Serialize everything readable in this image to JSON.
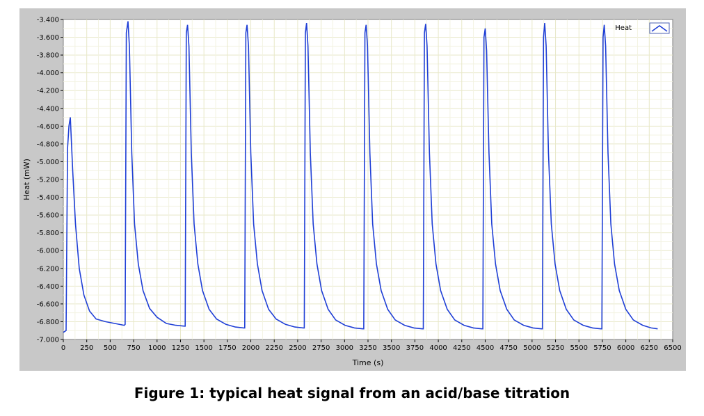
{
  "caption": "Figure 1: typical heat signal from an acid/base titration",
  "colors": {
    "line": "#1f3fd6",
    "panel": "#c8c8c8",
    "plot_bg": "#ffffff",
    "grid": "#e8e8c8"
  },
  "chart_data": {
    "type": "line",
    "xlabel": "Time (s)",
    "ylabel": "Heat (mW)",
    "xlim": [
      0,
      6500
    ],
    "ylim": [
      -7.0,
      -3.4
    ],
    "x_ticks": [
      0,
      250,
      500,
      750,
      1000,
      1250,
      1500,
      1750,
      2000,
      2250,
      2500,
      2750,
      3000,
      3250,
      3500,
      3750,
      4000,
      4250,
      4500,
      4750,
      5000,
      5250,
      5500,
      5750,
      6000,
      6250,
      6500
    ],
    "y_tick_labels": [
      "-3.400",
      "-3.600",
      "-3.800",
      "-4.000",
      "-4.200",
      "-4.400",
      "-4.600",
      "-4.800",
      "-5.000",
      "-5.200",
      "-5.400",
      "-5.600",
      "-5.800",
      "-6.000",
      "-6.200",
      "-6.400",
      "-6.600",
      "-6.800",
      "-7.000"
    ],
    "grid": true,
    "legend_position": "top-right",
    "series": [
      {
        "name": "Heat",
        "color": "#1f3fd6",
        "points": [
          [
            0,
            -6.92
          ],
          [
            30,
            -6.9
          ],
          [
            45,
            -4.85
          ],
          [
            60,
            -4.6
          ],
          [
            75,
            -4.5
          ],
          [
            100,
            -5.1
          ],
          [
            130,
            -5.7
          ],
          [
            170,
            -6.2
          ],
          [
            220,
            -6.5
          ],
          [
            280,
            -6.68
          ],
          [
            350,
            -6.77
          ],
          [
            450,
            -6.8
          ],
          [
            550,
            -6.82
          ],
          [
            650,
            -6.84
          ],
          [
            660,
            -6.83
          ],
          [
            672,
            -3.55
          ],
          [
            690,
            -3.42
          ],
          [
            705,
            -3.7
          ],
          [
            730,
            -4.9
          ],
          [
            760,
            -5.7
          ],
          [
            800,
            -6.15
          ],
          [
            850,
            -6.45
          ],
          [
            920,
            -6.65
          ],
          [
            1000,
            -6.75
          ],
          [
            1100,
            -6.82
          ],
          [
            1200,
            -6.84
          ],
          [
            1290,
            -6.85
          ],
          [
            1300,
            -6.85
          ],
          [
            1312,
            -3.55
          ],
          [
            1325,
            -3.46
          ],
          [
            1340,
            -3.7
          ],
          [
            1365,
            -4.9
          ],
          [
            1395,
            -5.7
          ],
          [
            1435,
            -6.15
          ],
          [
            1485,
            -6.45
          ],
          [
            1555,
            -6.66
          ],
          [
            1635,
            -6.77
          ],
          [
            1735,
            -6.83
          ],
          [
            1835,
            -6.86
          ],
          [
            1925,
            -6.87
          ],
          [
            1935,
            -6.87
          ],
          [
            1947,
            -3.55
          ],
          [
            1960,
            -3.46
          ],
          [
            1975,
            -3.7
          ],
          [
            2000,
            -4.9
          ],
          [
            2030,
            -5.7
          ],
          [
            2070,
            -6.15
          ],
          [
            2120,
            -6.45
          ],
          [
            2190,
            -6.66
          ],
          [
            2270,
            -6.77
          ],
          [
            2370,
            -6.83
          ],
          [
            2470,
            -6.86
          ],
          [
            2560,
            -6.87
          ],
          [
            2570,
            -6.87
          ],
          [
            2582,
            -3.55
          ],
          [
            2595,
            -3.44
          ],
          [
            2610,
            -3.7
          ],
          [
            2635,
            -4.9
          ],
          [
            2665,
            -5.7
          ],
          [
            2705,
            -6.15
          ],
          [
            2755,
            -6.45
          ],
          [
            2825,
            -6.66
          ],
          [
            2905,
            -6.78
          ],
          [
            3005,
            -6.84
          ],
          [
            3105,
            -6.87
          ],
          [
            3195,
            -6.88
          ],
          [
            3205,
            -6.88
          ],
          [
            3217,
            -3.55
          ],
          [
            3230,
            -3.46
          ],
          [
            3245,
            -3.7
          ],
          [
            3270,
            -4.9
          ],
          [
            3300,
            -5.7
          ],
          [
            3340,
            -6.15
          ],
          [
            3390,
            -6.45
          ],
          [
            3460,
            -6.66
          ],
          [
            3540,
            -6.78
          ],
          [
            3640,
            -6.84
          ],
          [
            3740,
            -6.87
          ],
          [
            3830,
            -6.88
          ],
          [
            3840,
            -6.88
          ],
          [
            3852,
            -3.55
          ],
          [
            3865,
            -3.45
          ],
          [
            3880,
            -3.7
          ],
          [
            3905,
            -4.9
          ],
          [
            3935,
            -5.7
          ],
          [
            3975,
            -6.15
          ],
          [
            4025,
            -6.45
          ],
          [
            4095,
            -6.66
          ],
          [
            4175,
            -6.78
          ],
          [
            4275,
            -6.84
          ],
          [
            4375,
            -6.87
          ],
          [
            4465,
            -6.88
          ],
          [
            4475,
            -6.88
          ],
          [
            4487,
            -3.6
          ],
          [
            4500,
            -3.5
          ],
          [
            4515,
            -3.75
          ],
          [
            4540,
            -4.9
          ],
          [
            4570,
            -5.7
          ],
          [
            4610,
            -6.15
          ],
          [
            4660,
            -6.45
          ],
          [
            4730,
            -6.66
          ],
          [
            4810,
            -6.78
          ],
          [
            4910,
            -6.84
          ],
          [
            5010,
            -6.87
          ],
          [
            5100,
            -6.88
          ],
          [
            5110,
            -6.88
          ],
          [
            5122,
            -3.6
          ],
          [
            5135,
            -3.44
          ],
          [
            5150,
            -3.7
          ],
          [
            5175,
            -4.9
          ],
          [
            5205,
            -5.7
          ],
          [
            5245,
            -6.15
          ],
          [
            5295,
            -6.45
          ],
          [
            5365,
            -6.66
          ],
          [
            5445,
            -6.78
          ],
          [
            5545,
            -6.84
          ],
          [
            5645,
            -6.87
          ],
          [
            5735,
            -6.88
          ],
          [
            5745,
            -6.88
          ],
          [
            5757,
            -3.6
          ],
          [
            5770,
            -3.46
          ],
          [
            5785,
            -3.7
          ],
          [
            5810,
            -4.9
          ],
          [
            5840,
            -5.7
          ],
          [
            5880,
            -6.15
          ],
          [
            5930,
            -6.45
          ],
          [
            6000,
            -6.66
          ],
          [
            6080,
            -6.78
          ],
          [
            6180,
            -6.84
          ],
          [
            6270,
            -6.87
          ],
          [
            6340,
            -6.88
          ]
        ]
      }
    ]
  }
}
